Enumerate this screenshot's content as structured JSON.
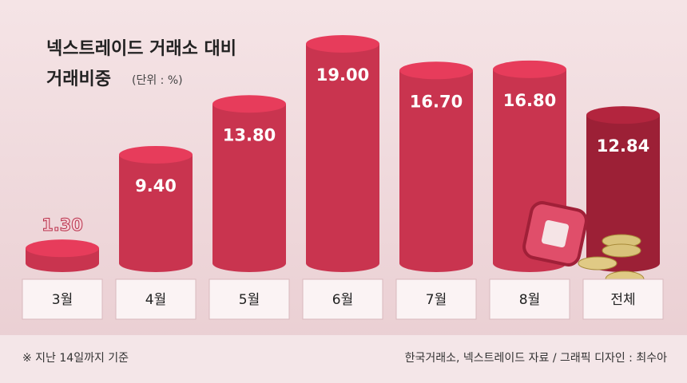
{
  "chart_data": {
    "type": "bar",
    "title": [
      "넥스트레이드 거래소 대비",
      "거래비중"
    ],
    "unit": "(단위 : %)",
    "categories": [
      "3월",
      "4월",
      "5월",
      "6월",
      "7월",
      "8월",
      "전체"
    ],
    "values": [
      1.3,
      9.4,
      13.8,
      19.0,
      16.7,
      16.8,
      12.84
    ],
    "value_labels": [
      "1.30",
      "9.40",
      "13.80",
      "19.00",
      "16.70",
      "16.80",
      "12.84"
    ],
    "colors": [
      "#c9344f",
      "#c9344f",
      "#c9344f",
      "#c9344f",
      "#c9344f",
      "#c9344f",
      "#9c2036"
    ],
    "footnote": "※ 지난 14일까지 기준",
    "source": "한국거래소, 넥스트레이드 자료 / 그래픽 디자인 : 최수아"
  }
}
